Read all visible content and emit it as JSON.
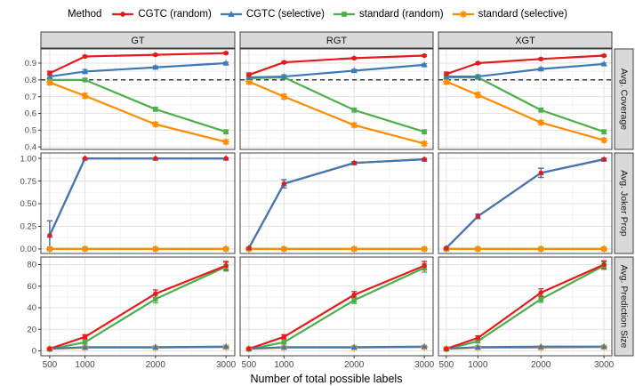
{
  "chart_data": {
    "type": "line",
    "legend_title": "Method",
    "legend_position": "top",
    "grid": true,
    "xlabel": "Number of total possible labels",
    "x": [
      500,
      1000,
      2000,
      3000
    ],
    "x_tick_labels": [
      "500",
      "1000",
      "2000",
      "3000"
    ],
    "facet_cols": [
      "GT",
      "RGT",
      "XGT"
    ],
    "facet_rows": [
      "Avg. Coverage",
      "Avg. Joker Prop",
      "Avg. Prediction Size"
    ],
    "series": [
      {
        "name": "CGTC (random)",
        "color": "#e41a1c",
        "marker": "circle"
      },
      {
        "name": "CGTC (selective)",
        "color": "#3d7ab8",
        "marker": "triangle"
      },
      {
        "name": "standard (random)",
        "color": "#4daf4a",
        "marker": "square"
      },
      {
        "name": "standard (selective)",
        "color": "#ff8c00",
        "marker": "asterisk"
      }
    ],
    "rows": [
      {
        "label": "Avg. Coverage",
        "ylim": [
          0.385,
          0.985
        ],
        "yticks": [
          0.4,
          0.5,
          0.6,
          0.7,
          0.8,
          0.9
        ],
        "ytick_labels": [
          "0.4",
          "0.5",
          "0.6",
          "0.7",
          "0.8",
          "0.9"
        ],
        "dashed_ref_line": 0.8,
        "panels": [
          {
            "col": "GT",
            "values": [
              [
                0.84,
                0.94,
                0.95,
                0.96
              ],
              [
                0.82,
                0.85,
                0.875,
                0.9
              ],
              [
                0.8,
                0.8,
                0.625,
                0.49
              ],
              [
                0.785,
                0.705,
                0.535,
                0.43
              ]
            ],
            "errors": [
              [
                0.012,
                0.005,
                0.005,
                0.005
              ],
              [
                0.012,
                0.012,
                0.008,
                0.006
              ],
              [
                0.01,
                0.008,
                0.012,
                0.012
              ],
              [
                0.015,
                0.015,
                0.012,
                0.012
              ]
            ]
          },
          {
            "col": "RGT",
            "values": [
              [
                0.83,
                0.905,
                0.93,
                0.945
              ],
              [
                0.815,
                0.82,
                0.855,
                0.89
              ],
              [
                0.81,
                0.815,
                0.62,
                0.49
              ],
              [
                0.79,
                0.7,
                0.53,
                0.42
              ]
            ],
            "errors": [
              [
                0.012,
                0.006,
                0.005,
                0.005
              ],
              [
                0.012,
                0.01,
                0.008,
                0.006
              ],
              [
                0.01,
                0.008,
                0.012,
                0.012
              ],
              [
                0.015,
                0.015,
                0.012,
                0.012
              ]
            ]
          },
          {
            "col": "XGT",
            "values": [
              [
                0.835,
                0.9,
                0.925,
                0.945
              ],
              [
                0.82,
                0.82,
                0.865,
                0.895
              ],
              [
                0.815,
                0.815,
                0.62,
                0.49
              ],
              [
                0.79,
                0.71,
                0.545,
                0.44
              ]
            ],
            "errors": [
              [
                0.012,
                0.006,
                0.005,
                0.005
              ],
              [
                0.012,
                0.01,
                0.008,
                0.006
              ],
              [
                0.01,
                0.008,
                0.012,
                0.012
              ],
              [
                0.015,
                0.015,
                0.012,
                0.012
              ]
            ]
          }
        ]
      },
      {
        "label": "Avg. Joker Prop",
        "ylim": [
          -0.05,
          1.06
        ],
        "yticks": [
          0,
          0.25,
          0.5,
          0.75,
          1
        ],
        "ytick_labels": [
          "0.00",
          "0.25",
          "0.50",
          "0.75",
          "1.00"
        ],
        "dashed_ref_line": null,
        "panels": [
          {
            "col": "GT",
            "values": [
              [
                0.15,
                1.0,
                1.0,
                1.0
              ],
              [
                0.15,
                1.0,
                1.0,
                1.0
              ],
              [
                0,
                0,
                0,
                0
              ],
              [
                0,
                0,
                0,
                0
              ]
            ],
            "errors": [
              [
                0.16,
                0.004,
                0.004,
                0.004
              ],
              [
                0.16,
                0.004,
                0.004,
                0.004
              ],
              [
                0.004,
                0.004,
                0.004,
                0.004
              ],
              [
                0.012,
                0.012,
                0.012,
                0.012
              ]
            ]
          },
          {
            "col": "RGT",
            "values": [
              [
                0.01,
                0.72,
                0.95,
                0.99
              ],
              [
                0.01,
                0.72,
                0.95,
                0.99
              ],
              [
                0,
                0,
                0,
                0
              ],
              [
                0,
                0,
                0,
                0
              ]
            ],
            "errors": [
              [
                0.006,
                0.045,
                0.015,
                0.008
              ],
              [
                0.006,
                0.045,
                0.015,
                0.008
              ],
              [
                0.004,
                0.004,
                0.004,
                0.004
              ],
              [
                0.012,
                0.012,
                0.012,
                0.012
              ]
            ]
          },
          {
            "col": "XGT",
            "values": [
              [
                0.01,
                0.36,
                0.84,
                0.99
              ],
              [
                0.01,
                0.36,
                0.84,
                0.99
              ],
              [
                0,
                0,
                0,
                0
              ],
              [
                0,
                0,
                0,
                0
              ]
            ],
            "errors": [
              [
                0.006,
                0.025,
                0.05,
                0.012
              ],
              [
                0.006,
                0.025,
                0.05,
                0.012
              ],
              [
                0.004,
                0.004,
                0.004,
                0.004
              ],
              [
                0.012,
                0.012,
                0.012,
                0.012
              ]
            ]
          }
        ]
      },
      {
        "label": "Avg. Prediction Size",
        "ylim": [
          -4.5,
          87
        ],
        "yticks": [
          0,
          20,
          40,
          60,
          80
        ],
        "ytick_labels": [
          "0",
          "20",
          "40",
          "60",
          "80"
        ],
        "dashed_ref_line": null,
        "panels": [
          {
            "col": "GT",
            "values": [
              [
                2,
                13,
                53,
                79
              ],
              [
                2,
                3.5,
                3.5,
                4
              ],
              [
                1.5,
                8,
                48,
                78
              ],
              [
                2,
                3,
                3,
                3.5
              ]
            ],
            "errors": [
              [
                0.5,
                2,
                3.5,
                4
              ],
              [
                0.3,
                0.3,
                0.3,
                0.3
              ],
              [
                0.4,
                1.5,
                3.5,
                4
              ],
              [
                0.3,
                0.3,
                0.3,
                0.3
              ]
            ]
          },
          {
            "col": "RGT",
            "values": [
              [
                2,
                13,
                52,
                79
              ],
              [
                2,
                3.5,
                3.5,
                4
              ],
              [
                1.5,
                8,
                47,
                77
              ],
              [
                2,
                3,
                3,
                3.5
              ]
            ],
            "errors": [
              [
                0.5,
                2,
                3,
                4
              ],
              [
                0.3,
                0.3,
                0.3,
                0.3
              ],
              [
                0.4,
                1.5,
                3,
                4
              ],
              [
                0.3,
                0.3,
                0.3,
                0.3
              ]
            ]
          },
          {
            "col": "XGT",
            "values": [
              [
                2,
                12,
                54,
                80
              ],
              [
                2,
                3.5,
                4,
                4
              ],
              [
                1.5,
                9,
                48,
                79
              ],
              [
                2,
                3,
                3,
                3.5
              ]
            ],
            "errors": [
              [
                0.5,
                2,
                3.5,
                3.5
              ],
              [
                0.3,
                0.3,
                0.3,
                0.3
              ],
              [
                0.4,
                1.5,
                3,
                3.5
              ],
              [
                0.3,
                0.3,
                0.3,
                0.3
              ]
            ]
          }
        ]
      }
    ]
  }
}
